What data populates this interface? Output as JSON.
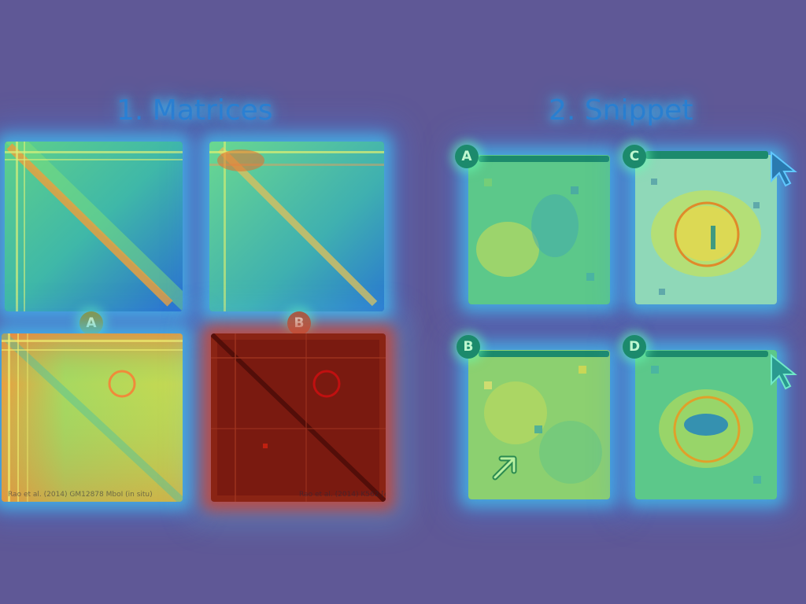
{
  "titles": {
    "matrices": "1. Matrices",
    "snippet": "2. Snippet"
  },
  "matrix_labels": {
    "a": "A",
    "b": "B"
  },
  "captions": {
    "a": "Rao et al. (2014) GM12878 MboI (in situ)",
    "b": "Rao et al. (2014) K562 [4]"
  },
  "snippet_labels": {
    "a": "A",
    "b": "B",
    "c": "C",
    "d": "D"
  },
  "colors": {
    "background": "#5f5896",
    "title": "#2a7fd0",
    "heat_low": "#2a6fd0",
    "heat_mid": "#7de07a",
    "heat_high": "#e86c2a",
    "heat_max": "#7a1a10",
    "badge_teal": "#1c8a6c"
  },
  "icons": [
    "cursor-arrow-icon",
    "diagonal-arrow-icon",
    "highlight-circle-icon"
  ]
}
